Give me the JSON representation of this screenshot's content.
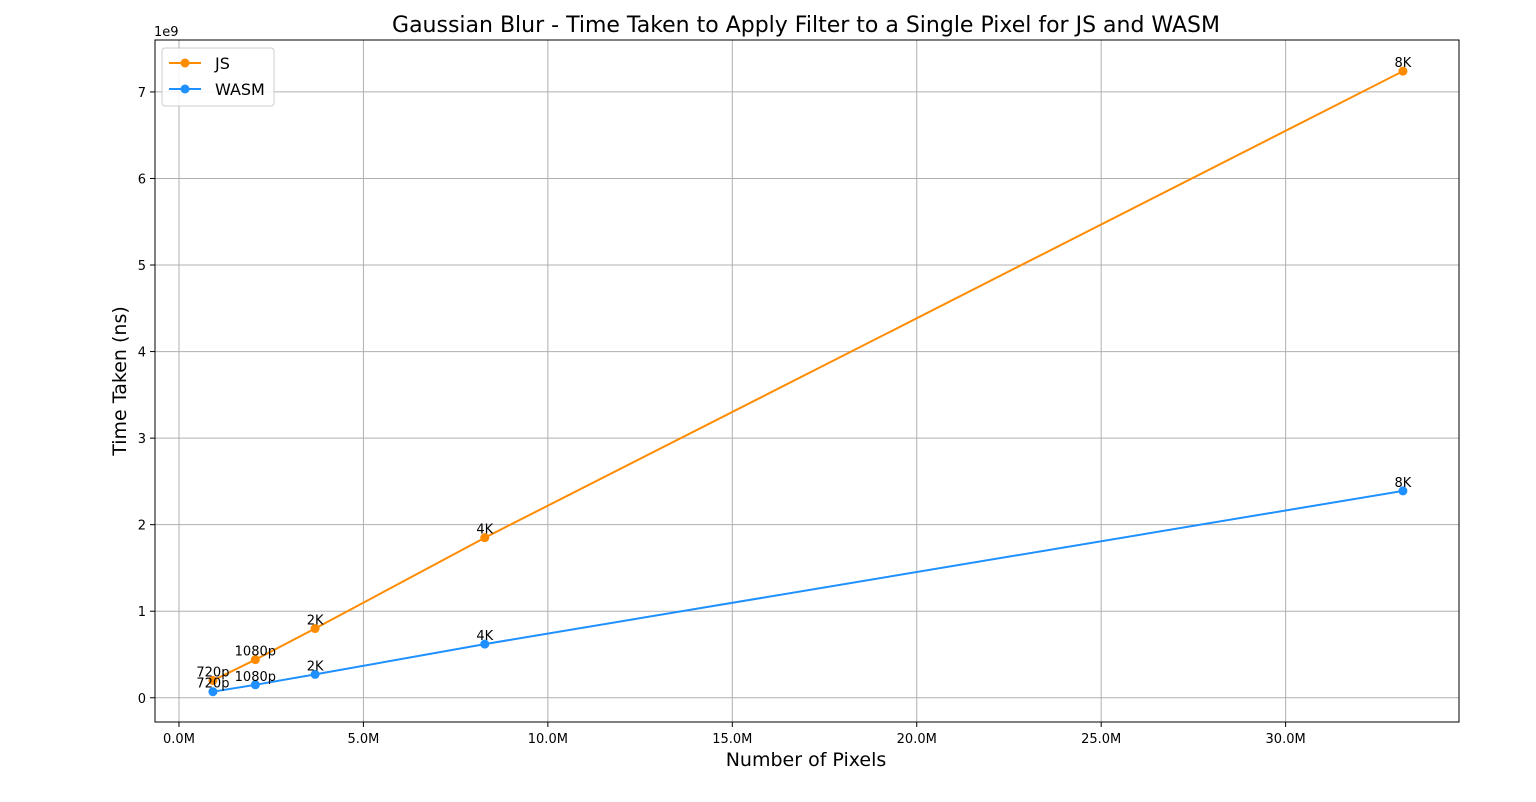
{
  "chart_data": {
    "type": "line",
    "title": "Gaussian Blur - Time Taken to Apply Filter to a Single Pixel for JS and WASM",
    "xlabel": "Number of Pixels",
    "ylabel": "Time Taken (ns)",
    "y_offset_label": "1e9",
    "xlim": [
      -0.65,
      34.7
    ],
    "ylim": [
      -0.28,
      7.6
    ],
    "x_ticks": [
      0,
      5,
      10,
      15,
      20,
      25,
      30
    ],
    "x_tick_labels": [
      "0.0M",
      "5.0M",
      "10.0M",
      "15.0M",
      "20.0M",
      "25.0M",
      "30.0M"
    ],
    "y_ticks": [
      0,
      1,
      2,
      3,
      4,
      5,
      6,
      7
    ],
    "y_tick_labels": [
      "0",
      "1",
      "2",
      "3",
      "4",
      "5",
      "6",
      "7"
    ],
    "grid": true,
    "legend_position": "top-left",
    "x_unit": "millions of pixels",
    "y_unit": "billions of ns",
    "series": [
      {
        "name": "JS",
        "color": "#ff8c00",
        "points": [
          {
            "x": 0.92,
            "y": 0.2,
            "label": "720p"
          },
          {
            "x": 2.07,
            "y": 0.44,
            "label": "1080p"
          },
          {
            "x": 3.69,
            "y": 0.8,
            "label": "2K"
          },
          {
            "x": 8.29,
            "y": 1.85,
            "label": "4K"
          },
          {
            "x": 33.18,
            "y": 7.24,
            "label": "8K"
          }
        ]
      },
      {
        "name": "WASM",
        "color": "#1e90ff",
        "points": [
          {
            "x": 0.92,
            "y": 0.07,
            "label": "720p"
          },
          {
            "x": 2.07,
            "y": 0.15,
            "label": "1080p"
          },
          {
            "x": 3.69,
            "y": 0.27,
            "label": "2K"
          },
          {
            "x": 8.29,
            "y": 0.62,
            "label": "4K"
          },
          {
            "x": 33.18,
            "y": 2.39,
            "label": "8K"
          }
        ]
      }
    ]
  }
}
